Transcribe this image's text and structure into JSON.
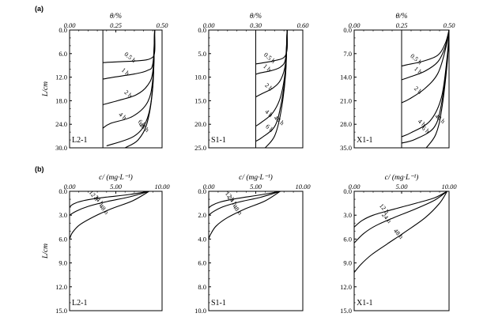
{
  "figure": {
    "row_labels": [
      "(a)",
      "(b)"
    ]
  },
  "chart_data": [
    {
      "type": "line",
      "row": "a",
      "panel_label": "L2-1",
      "xlabel": "θ/%",
      "ylabel": "L/cm",
      "xlim": [
        0,
        0.5
      ],
      "ylim": [
        0,
        30
      ],
      "y_inverted": true,
      "x_axis_position": "top",
      "xticks": [
        "0.00",
        "0.25",
        "0.50"
      ],
      "yticks": [
        "0.0",
        "6.0",
        "12.0",
        "18.0",
        "24.0",
        "30.0"
      ],
      "initial_theta": 0.18,
      "saturated_theta": 0.46,
      "series": [
        {
          "name": "0.5 h",
          "x": [
            0.46,
            0.46,
            0.44,
            0.38,
            0.26,
            0.18
          ],
          "y": [
            0,
            5.6,
            7.2,
            7.8,
            8.1,
            8.3
          ]
        },
        {
          "name": "1 h",
          "x": [
            0.46,
            0.45,
            0.42,
            0.35,
            0.24,
            0.18
          ],
          "y": [
            0,
            8.6,
            10.3,
            11.2,
            12.0,
            12.5
          ]
        },
        {
          "name": "2 h",
          "x": [
            0.46,
            0.45,
            0.42,
            0.36,
            0.26,
            0.18
          ],
          "y": [
            0,
            10.5,
            14.2,
            16.5,
            18.0,
            19.0
          ]
        },
        {
          "name": "4 h",
          "x": [
            0.46,
            0.45,
            0.42,
            0.34,
            0.22,
            0.18
          ],
          "y": [
            0,
            12.5,
            18.5,
            22.0,
            23.8,
            25.0
          ]
        },
        {
          "name": "6 h",
          "x": [
            0.46,
            0.45,
            0.42,
            0.35,
            0.2
          ],
          "y": [
            0,
            14.0,
            22.5,
            27.0,
            29.5
          ]
        },
        {
          "name": "48 h",
          "x": [
            0.46,
            0.45,
            0.42,
            0.37,
            0.3
          ],
          "y": [
            0,
            14.5,
            23.5,
            28.0,
            30.0
          ]
        }
      ]
    },
    {
      "type": "line",
      "row": "a",
      "panel_label": "S1-1",
      "xlabel": "θ/%",
      "ylabel": "",
      "xlim": [
        0,
        0.6
      ],
      "ylim": [
        0,
        25
      ],
      "y_inverted": true,
      "x_axis_position": "top",
      "xticks": [
        "0.00",
        "0.30",
        "0.60"
      ],
      "yticks": [
        "0.0",
        "5.0",
        "10.0",
        "15.0",
        "20.0",
        "25.0"
      ],
      "initial_theta": 0.3,
      "saturated_theta": 0.5,
      "series": [
        {
          "name": "0.5 h",
          "x": [
            0.5,
            0.5,
            0.48,
            0.42,
            0.34,
            0.3
          ],
          "y": [
            0,
            4.0,
            5.8,
            6.5,
            7.0,
            7.2
          ]
        },
        {
          "name": "1 h",
          "x": [
            0.5,
            0.49,
            0.46,
            0.4,
            0.33,
            0.3
          ],
          "y": [
            0,
            6.0,
            7.8,
            8.6,
            9.1,
            9.4
          ]
        },
        {
          "name": "2 h",
          "x": [
            0.5,
            0.49,
            0.46,
            0.41,
            0.34,
            0.3
          ],
          "y": [
            0,
            7.0,
            10.5,
            12.3,
            13.5,
            14.2
          ]
        },
        {
          "name": "4 h",
          "x": [
            0.5,
            0.49,
            0.46,
            0.41,
            0.34,
            0.3
          ],
          "y": [
            0,
            8.0,
            14.0,
            17.5,
            19.5,
            20.4
          ]
        },
        {
          "name": "6 h",
          "x": [
            0.5,
            0.49,
            0.46,
            0.42,
            0.34,
            0.3
          ],
          "y": [
            0,
            9.0,
            16.0,
            20.5,
            22.8,
            23.6
          ]
        },
        {
          "name": "48 h",
          "x": [
            0.5,
            0.49,
            0.46,
            0.42,
            0.36
          ],
          "y": [
            0,
            9.5,
            17.5,
            22.5,
            25.0
          ]
        }
      ]
    },
    {
      "type": "line",
      "row": "a",
      "panel_label": "X1-1",
      "xlabel": "θ/%",
      "ylabel": "",
      "xlim": [
        0,
        0.5
      ],
      "ylim": [
        0,
        35
      ],
      "y_inverted": true,
      "x_axis_position": "top",
      "xticks": [
        "0.00",
        "0.25",
        "0.50"
      ],
      "yticks": [
        "0.0",
        "7.0",
        "14.0",
        "21.0",
        "28.0",
        "35.0"
      ],
      "initial_theta": 0.25,
      "saturated_theta": 0.5,
      "series": [
        {
          "name": "0.5 h",
          "x": [
            0.5,
            0.48,
            0.44,
            0.36,
            0.28,
            0.25
          ],
          "y": [
            0,
            4.0,
            7.5,
            9.3,
            10.3,
            10.7
          ]
        },
        {
          "name": "1 h",
          "x": [
            0.5,
            0.48,
            0.44,
            0.37,
            0.29,
            0.25
          ],
          "y": [
            0,
            5.0,
            9.5,
            12.3,
            14.0,
            14.8
          ]
        },
        {
          "name": "2 h",
          "x": [
            0.5,
            0.48,
            0.44,
            0.37,
            0.29,
            0.25
          ],
          "y": [
            0,
            6.0,
            13.0,
            17.5,
            20.5,
            21.6
          ]
        },
        {
          "name": "4 h",
          "x": [
            0.5,
            0.49,
            0.46,
            0.4,
            0.3,
            0.25
          ],
          "y": [
            0,
            8.0,
            20.0,
            27.0,
            30.5,
            31.7
          ]
        },
        {
          "name": "6 h",
          "x": [
            0.5,
            0.49,
            0.46,
            0.42,
            0.32,
            0.25
          ],
          "y": [
            0,
            9.0,
            22.0,
            29.0,
            32.5,
            33.6
          ]
        },
        {
          "name": "48 h",
          "x": [
            0.5,
            0.49,
            0.46,
            0.43,
            0.38
          ],
          "y": [
            0,
            10.0,
            24.0,
            31.0,
            35.0
          ]
        }
      ]
    },
    {
      "type": "line",
      "row": "b",
      "panel_label": "L2-1",
      "xlabel": "c/ (mg·L⁻¹)",
      "ylabel": "L/cm",
      "xlim": [
        0,
        10
      ],
      "ylim": [
        0,
        15
      ],
      "y_inverted": true,
      "x_axis_position": "top",
      "xticks": [
        "0.00",
        "5.00",
        "10.00"
      ],
      "yticks": [
        "0.0",
        "3.0",
        "6.0",
        "9.0",
        "12.0",
        "15.0"
      ],
      "series": [
        {
          "name": "12 h",
          "x": [
            8.6,
            6.5,
            3.5,
            1.4,
            0.4,
            0.0
          ],
          "y": [
            0,
            0.4,
            0.8,
            1.2,
            1.6,
            2.0
          ]
        },
        {
          "name": "24 h",
          "x": [
            8.6,
            6.5,
            4.0,
            2.0,
            0.7,
            0.0
          ],
          "y": [
            0,
            0.7,
            1.3,
            1.9,
            2.5,
            3.0
          ]
        },
        {
          "name": "48 h",
          "x": [
            8.6,
            6.8,
            4.5,
            2.6,
            1.1,
            0.3,
            0.0
          ],
          "y": [
            0,
            1.2,
            2.2,
            3.2,
            4.2,
            5.2,
            6.0
          ]
        }
      ]
    },
    {
      "type": "line",
      "row": "b",
      "panel_label": "S1-1",
      "xlabel": "c/ (mg·L⁻¹)",
      "ylabel": "",
      "xlim": [
        0,
        10
      ],
      "ylim": [
        0,
        10
      ],
      "y_inverted": true,
      "x_axis_position": "top",
      "xticks": [
        "0.00",
        "5.00",
        "10.00"
      ],
      "yticks": [
        "0.0",
        "2.0",
        "4.0",
        "6.0",
        "8.0",
        "10.0"
      ],
      "series": [
        {
          "name": "12 h",
          "x": [
            7.6,
            5.5,
            3.0,
            1.2,
            0.3,
            0.0
          ],
          "y": [
            0,
            0.3,
            0.6,
            0.9,
            1.2,
            1.4
          ]
        },
        {
          "name": "24 h",
          "x": [
            7.6,
            5.5,
            3.2,
            1.5,
            0.5,
            0.0
          ],
          "y": [
            0,
            0.5,
            0.9,
            1.3,
            1.7,
            2.0
          ]
        },
        {
          "name": "48 h",
          "x": [
            7.6,
            6.0,
            3.8,
            2.0,
            0.8,
            0.2,
            0.0
          ],
          "y": [
            0,
            0.8,
            1.5,
            2.2,
            2.9,
            3.6,
            4.0
          ]
        }
      ]
    },
    {
      "type": "line",
      "row": "b",
      "panel_label": "X1-1",
      "xlabel": "c/ (mg·L⁻¹)",
      "ylabel": "",
      "xlim": [
        0,
        10
      ],
      "ylim": [
        0,
        15
      ],
      "y_inverted": true,
      "x_axis_position": "top",
      "xticks": [
        "0.00",
        "5.00",
        "10.00"
      ],
      "yticks": [
        "0.0",
        "3.0",
        "6.0",
        "9.0",
        "12.0",
        "15.0"
      ],
      "series": [
        {
          "name": "12 h",
          "x": [
            9.8,
            8.5,
            6.5,
            4.0,
            2.0,
            0.8,
            0.0
          ],
          "y": [
            0,
            0.8,
            1.5,
            2.3,
            3.0,
            3.7,
            4.5
          ]
        },
        {
          "name": "24 h",
          "x": [
            9.8,
            8.5,
            6.5,
            4.2,
            2.3,
            1.0,
            0.0
          ],
          "y": [
            0,
            1.1,
            2.2,
            3.3,
            4.3,
            5.3,
            6.5
          ]
        },
        {
          "name": "48 h",
          "x": [
            9.8,
            9.0,
            7.5,
            5.5,
            3.5,
            1.8,
            0.7,
            0.0
          ],
          "y": [
            0,
            1.5,
            3.3,
            5.0,
            6.6,
            8.0,
            9.2,
            10.2
          ]
        }
      ]
    }
  ]
}
